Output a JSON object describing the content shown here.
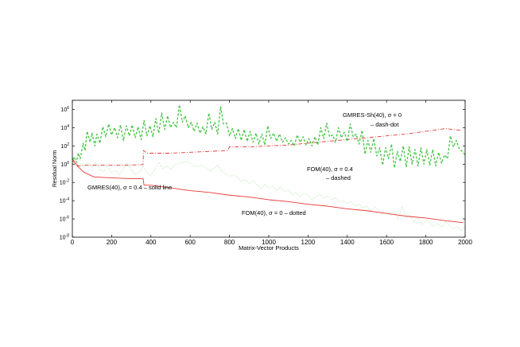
{
  "chart_data": {
    "type": "line",
    "xlabel": "Matrix-Vector Products",
    "ylabel": "Residual Norm",
    "xlim": [
      0,
      2000
    ],
    "ylim_log10": [
      -8,
      7
    ],
    "y_scale": "log",
    "grid": false,
    "x_ticks": [
      "0",
      "200",
      "400",
      "600",
      "800",
      "1000",
      "1200",
      "1400",
      "1600",
      "1800",
      "2000"
    ],
    "y_ticks": [
      {
        "base": "10",
        "exp": "-8",
        "value": -8
      },
      {
        "base": "10",
        "exp": "-6",
        "value": -6
      },
      {
        "base": "10",
        "exp": "-4",
        "value": -4
      },
      {
        "base": "10",
        "exp": "-2",
        "value": -2
      },
      {
        "base": "10",
        "exp": "0",
        "value": 0
      },
      {
        "base": "10",
        "exp": "2",
        "value": 2
      },
      {
        "base": "10",
        "exp": "4",
        "value": 4
      },
      {
        "base": "10",
        "exp": "6",
        "value": 6
      }
    ],
    "annotations": {
      "gmres_sh": "GMRES-Sh(40), σ = 0",
      "gmres_sh_style": "– dash-dot",
      "fom04": "FOM(40), σ = 0.4",
      "fom04_style": "– dashed",
      "gmres04": "GMRES(40), σ = 0.4 – solid line",
      "fom0": "FOM(40), σ = 0 – dotted"
    },
    "series": [
      {
        "key": "gmres_sh0",
        "color": "#e53935",
        "style": "dashdot",
        "x": [
          0,
          30,
          60,
          120,
          200,
          300,
          360,
          362,
          380,
          500,
          600,
          700,
          790,
          800,
          900,
          1000,
          1100,
          1200,
          1300,
          1400,
          1500,
          1600,
          1700,
          1800,
          1900,
          1980
        ],
        "y_log10": [
          0.6,
          -0.2,
          -0.1,
          -0.1,
          -0.1,
          -0.1,
          -0.05,
          1.5,
          1.2,
          1.2,
          1.3,
          1.4,
          1.5,
          1.9,
          1.9,
          2.0,
          2.1,
          2.3,
          2.5,
          2.7,
          2.9,
          3.1,
          3.3,
          3.6,
          3.9,
          3.7
        ]
      },
      {
        "key": "gmres04",
        "color": "#e53935",
        "style": "solid",
        "x": [
          0,
          30,
          60,
          100,
          110,
          200,
          300,
          360,
          365,
          400,
          500,
          600,
          700,
          800,
          900,
          1000,
          1100,
          1200,
          1300,
          1400,
          1500,
          1600,
          1700,
          1800,
          1900,
          1990
        ],
        "y_log10": [
          0.4,
          -0.3,
          -0.9,
          -1.3,
          -1.4,
          -1.5,
          -1.6,
          -1.6,
          -2.3,
          -2.3,
          -2.6,
          -2.9,
          -3.1,
          -3.4,
          -3.6,
          -3.9,
          -4.1,
          -4.4,
          -4.6,
          -4.9,
          -5.1,
          -5.4,
          -5.7,
          -5.9,
          -6.2,
          -6.4
        ]
      },
      {
        "key": "fom04",
        "color": "#43c443",
        "style": "dashed",
        "x": [
          0,
          10,
          20,
          30,
          40,
          55,
          65,
          75,
          90,
          100,
          115,
          125,
          140,
          155,
          170,
          185,
          200,
          215,
          230,
          245,
          260,
          275,
          290,
          305,
          320,
          335,
          350,
          365,
          380,
          395,
          410,
          425,
          440,
          455,
          470,
          485,
          500,
          515,
          530,
          545,
          560,
          575,
          590,
          605,
          620,
          635,
          650,
          665,
          680,
          695,
          710,
          725,
          740,
          755,
          770,
          785,
          800,
          815,
          830,
          845,
          860,
          875,
          890,
          905,
          920,
          935,
          950,
          965,
          980,
          995,
          1010,
          1025,
          1040,
          1055,
          1070,
          1085,
          1100,
          1115,
          1130,
          1145,
          1160,
          1175,
          1190,
          1205,
          1220,
          1235,
          1250,
          1265,
          1280,
          1295,
          1310,
          1325,
          1340,
          1355,
          1370,
          1385,
          1400,
          1415,
          1430,
          1445,
          1460,
          1475,
          1490,
          1505,
          1520,
          1535,
          1550,
          1565,
          1580,
          1595,
          1610,
          1625,
          1640,
          1655,
          1670,
          1685,
          1700,
          1715,
          1730,
          1745,
          1760,
          1775,
          1790,
          1805,
          1820,
          1835,
          1850,
          1865,
          1880,
          1895,
          1910,
          1925,
          1940,
          1955,
          1970,
          1985,
          2000
        ],
        "y_log10": [
          0.5,
          0.8,
          0.2,
          1.2,
          0.6,
          2.3,
          1.5,
          3.6,
          2.4,
          3.4,
          2.0,
          3.3,
          2.3,
          4.1,
          3.0,
          4.4,
          3.2,
          4.0,
          2.9,
          4.3,
          2.6,
          4.2,
          3.1,
          4.3,
          2.9,
          4.1,
          2.7,
          4.8,
          3.1,
          4.2,
          3.0,
          5.0,
          3.4,
          5.6,
          3.8,
          5.3,
          4.0,
          4.6,
          4.0,
          6.5,
          4.6,
          5.3,
          4.0,
          4.6,
          3.6,
          4.5,
          3.4,
          4.1,
          3.3,
          5.6,
          3.8,
          4.6,
          3.3,
          6.3,
          4.4,
          4.5,
          3.1,
          3.9,
          2.8,
          3.9,
          2.6,
          3.8,
          2.5,
          3.6,
          2.4,
          3.4,
          2.2,
          3.3,
          2.1,
          4.2,
          2.8,
          3.4,
          2.5,
          3.3,
          2.4,
          2.9,
          2.2,
          2.6,
          2.0,
          3.2,
          2.4,
          3.0,
          2.1,
          2.8,
          2.0,
          3.0,
          2.1,
          4.0,
          2.8,
          4.5,
          3.0,
          3.2,
          2.4,
          4.0,
          2.9,
          3.5,
          2.5,
          4.4,
          3.0,
          3.3,
          2.2,
          3.7,
          1.1,
          2.6,
          1.3,
          2.8,
          0.9,
          1.8,
          -0.1,
          1.8,
          0.6,
          2.2,
          -0.4,
          1.4,
          0.3,
          2.0,
          -0.3,
          1.9,
          0.0,
          1.6,
          -0.2,
          1.8,
          0.0,
          1.6,
          -0.1,
          1.6,
          -0.2,
          1.3,
          0.1,
          1.0,
          0.6,
          3.1,
          1.9,
          2.6,
          1.7,
          1.4,
          1.0
        ]
      },
      {
        "key": "fom0",
        "color": "#b7e4b0",
        "style": "dotted",
        "x": [
          0,
          20,
          40,
          60,
          80,
          100,
          120,
          140,
          160,
          180,
          200,
          220,
          240,
          260,
          280,
          300,
          320,
          340,
          360,
          380,
          400,
          420,
          440,
          460,
          480,
          500,
          520,
          540,
          560,
          580,
          600,
          620,
          640,
          660,
          680,
          700,
          720,
          740,
          760,
          780,
          800,
          820,
          840,
          860,
          880,
          900,
          920,
          940,
          960,
          980,
          1000,
          1020,
          1040,
          1060,
          1080,
          1100,
          1120,
          1140,
          1160,
          1180,
          1200,
          1220,
          1240,
          1260,
          1280,
          1300,
          1320,
          1340,
          1360,
          1380,
          1400,
          1420,
          1440,
          1460,
          1480,
          1500,
          1520,
          1540,
          1560,
          1580,
          1600,
          1620,
          1640,
          1660,
          1680,
          1700,
          1720,
          1740,
          1760,
          1780,
          1800,
          1820,
          1840,
          1860,
          1880,
          1900,
          1920,
          1940,
          1960,
          1980,
          2000
        ],
        "y_log10": [
          0.9,
          0.3,
          0.1,
          -0.3,
          0.2,
          -0.4,
          0.2,
          -0.6,
          -0.8,
          -0.2,
          -1.0,
          -0.7,
          -1.2,
          -0.5,
          0.1,
          -0.6,
          -1.2,
          -0.9,
          -0.2,
          -0.9,
          -1.2,
          -0.6,
          0.2,
          -0.5,
          -0.2,
          -0.6,
          -0.1,
          0.1,
          0.2,
          0.3,
          0.1,
          -0.2,
          -0.3,
          -0.1,
          -0.4,
          -0.8,
          -0.5,
          -0.1,
          -0.8,
          -1.0,
          -1.3,
          -1.2,
          -1.4,
          -1.9,
          -1.7,
          -2.1,
          -1.8,
          -2.3,
          -2.7,
          -2.2,
          -2.6,
          -2.4,
          -2.9,
          -2.5,
          -3.0,
          -2.8,
          -3.3,
          -3.1,
          -3.6,
          -3.2,
          -3.4,
          -3.9,
          -3.6,
          -3.3,
          -3.7,
          -3.5,
          -3.9,
          -3.7,
          -4.2,
          -4.0,
          -4.3,
          -4.1,
          -4.6,
          -4.4,
          -4.8,
          -4.6,
          -5.1,
          -4.7,
          -5.0,
          -5.5,
          -5.2,
          -5.6,
          -5.3,
          -6.0,
          -4.6,
          -5.9,
          -5.6,
          -6.4,
          -5.8,
          -6.6,
          -6.1,
          -6.4,
          -6.8,
          -6.5,
          -6.9,
          -6.3,
          -6.7,
          -7.1,
          -6.8,
          -7.3,
          -6.9
        ]
      }
    ]
  }
}
